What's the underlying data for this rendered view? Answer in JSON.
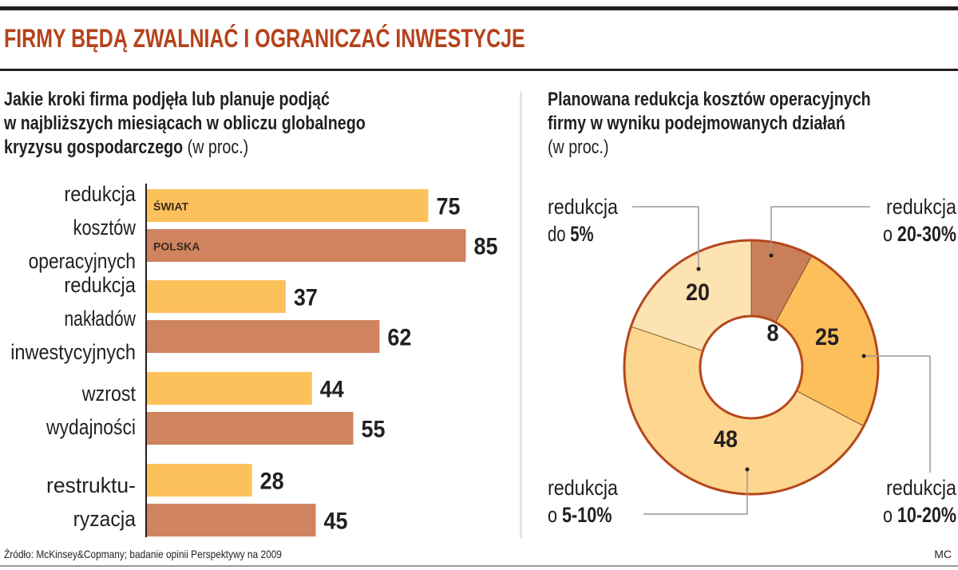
{
  "title": "FIRMY BĘDĄ ZWALNIAĆ I OGRANICZAĆ INWESTYCJE",
  "left": {
    "subtitle_lines": [
      "Jakie kroki firma podjęła lub planuje podjąć",
      "w najbliższych miesiącach w obliczu globalnego",
      "kryzysu gospodarczego"
    ],
    "subtitle_unit": "(w proc.)"
  },
  "right": {
    "subtitle_lines": [
      "Planowana redukcja kosztów operacyjnych",
      "firmy w wyniku podejmowanych działań"
    ],
    "subtitle_unit": "(w proc.)"
  },
  "chart_data": [
    {
      "type": "bar",
      "orientation": "horizontal",
      "categories": [
        [
          "redukcja",
          "kosztów",
          "operacyjnych"
        ],
        [
          "redukcja",
          "nakładów",
          "inwestycyjnych"
        ],
        [
          "wzrost",
          "wydajności"
        ],
        [
          "restruktu-",
          "ryzacja"
        ]
      ],
      "series": [
        {
          "name": "ŚWIAT",
          "values": [
            75,
            37,
            44,
            28
          ],
          "color": "#fdc15c"
        },
        {
          "name": "POLSKA",
          "values": [
            85,
            62,
            55,
            45
          ],
          "color": "#cf835f"
        }
      ],
      "legend_placement": "inside-first-bars",
      "grid": false
    },
    {
      "type": "pie",
      "donut": true,
      "slices": [
        {
          "label": [
            "redukcja",
            "o 20-30%"
          ],
          "value": 8,
          "color": "#c97f58"
        },
        {
          "label": [
            "redukcja",
            "o 10-20%"
          ],
          "value": 25,
          "color": "#fcbf5b"
        },
        {
          "label": [
            "redukcja",
            "o 5-10%"
          ],
          "value": 48,
          "color": "#fdd690"
        },
        {
          "label": [
            "redukcja",
            "do 5%"
          ],
          "value": 20,
          "color": "#fde2b2"
        }
      ],
      "border_color": "#b5471d"
    }
  ],
  "footer": {
    "source": "Źródło: McKinsey&Copmany; badanie opinii Perspektywy na 2009",
    "author": "MC"
  }
}
